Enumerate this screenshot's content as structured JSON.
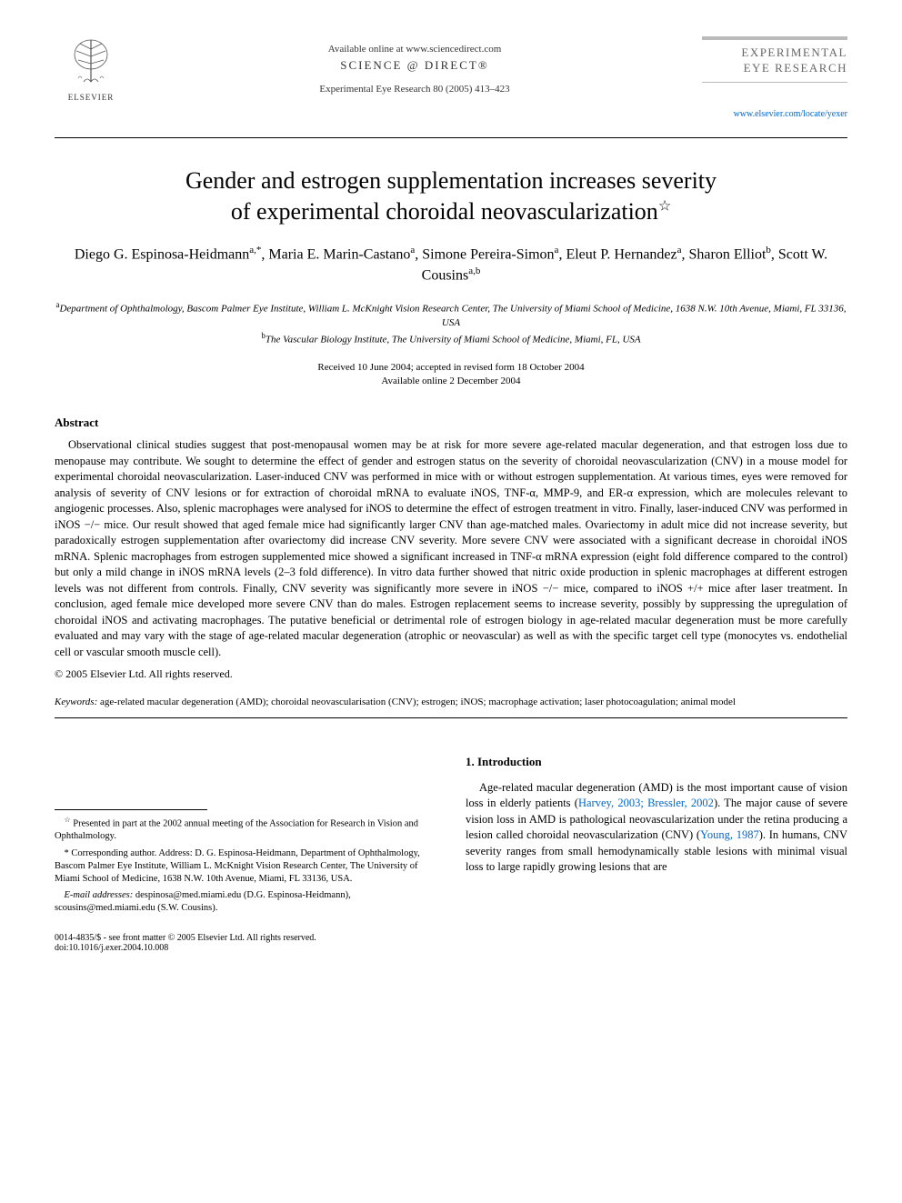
{
  "header": {
    "publisher_name": "ELSEVIER",
    "available_online": "Available online at www.sciencedirect.com",
    "science_direct": "SCIENCE @ DIRECT®",
    "journal_ref": "Experimental Eye Research 80 (2005) 413–423",
    "journal_logo_line1": "EXPERIMENTAL",
    "journal_logo_line2": "EYE RESEARCH",
    "journal_url": "www.elsevier.com/locate/yexer"
  },
  "article": {
    "title_line1": "Gender and estrogen supplementation increases severity",
    "title_line2": "of experimental choroidal neovascularization",
    "title_star": "☆",
    "authors_html": "Diego G. Espinosa-Heidmann<sup>a,*</sup>, Maria E. Marin-Castano<sup>a</sup>, Simone Pereira-Simon<sup>a</sup>, Eleut P. Hernandez<sup>a</sup>, Sharon Elliot<sup>b</sup>, Scott W. Cousins<sup>a,b</sup>",
    "affil_a": "Department of Ophthalmology, Bascom Palmer Eye Institute, William L. McKnight Vision Research Center, The University of Miami School of Medicine, 1638 N.W. 10th Avenue, Miami, FL 33136, USA",
    "affil_b": "The Vascular Biology Institute, The University of Miami School of Medicine, Miami, FL, USA",
    "received": "Received 10 June 2004; accepted in revised form 18 October 2004",
    "available": "Available online 2 December 2004"
  },
  "abstract": {
    "heading": "Abstract",
    "body": "Observational clinical studies suggest that post-menopausal women may be at risk for more severe age-related macular degeneration, and that estrogen loss due to menopause may contribute. We sought to determine the effect of gender and estrogen status on the severity of choroidal neovascularization (CNV) in a mouse model for experimental choroidal neovascularization. Laser-induced CNV was performed in mice with or without estrogen supplementation. At various times, eyes were removed for analysis of severity of CNV lesions or for extraction of choroidal mRNA to evaluate iNOS, TNF-α, MMP-9, and ER-α expression, which are molecules relevant to angiogenic processes. Also, splenic macrophages were analysed for iNOS to determine the effect of estrogen treatment in vitro. Finally, laser-induced CNV was performed in iNOS −/− mice. Our result showed that aged female mice had significantly larger CNV than age-matched males. Ovariectomy in adult mice did not increase severity, but paradoxically estrogen supplementation after ovariectomy did increase CNV severity. More severe CNV were associated with a significant decrease in choroidal iNOS mRNA. Splenic macrophages from estrogen supplemented mice showed a significant increased in TNF-α mRNA expression (eight fold difference compared to the control) but only a mild change in iNOS mRNA levels (2–3 fold difference). In vitro data further showed that nitric oxide production in splenic macrophages at different estrogen levels was not different from controls. Finally, CNV severity was significantly more severe in iNOS −/− mice, compared to iNOS +/+ mice after laser treatment. In conclusion, aged female mice developed more severe CNV than do males. Estrogen replacement seems to increase severity, possibly by suppressing the upregulation of choroidal iNOS and activating macrophages. The putative beneficial or detrimental role of estrogen biology in age-related macular degeneration must be more carefully evaluated and may vary with the stage of age-related macular degeneration (atrophic or neovascular) as well as with the specific target cell type (monocytes vs. endothelial cell or vascular smooth muscle cell).",
    "copyright": "© 2005 Elsevier Ltd. All rights reserved."
  },
  "keywords": {
    "label": "Keywords:",
    "text": " age-related macular degeneration (AMD); choroidal neovascularisation (CNV); estrogen; iNOS; macrophage activation; laser photocoagulation; animal model"
  },
  "footnotes": {
    "star": "Presented in part at the 2002 annual meeting of the Association for Research in Vision and Ophthalmology.",
    "corresponding": "Corresponding author. Address: D. G. Espinosa-Heidmann, Department of Ophthalmology, Bascom Palmer Eye Institute, William L. McKnight Vision Research Center, The University of Miami School of Medicine, 1638 N.W. 10th Avenue, Miami, FL 33136, USA.",
    "email_label": "E-mail addresses:",
    "email_text": " despinosa@med.miami.edu (D.G. Espinosa-Heidmann), scousins@med.miami.edu (S.W. Cousins)."
  },
  "intro": {
    "heading": "1. Introduction",
    "body_pre": "Age-related macular degeneration (AMD) is the most important cause of vision loss in elderly patients (",
    "cite1": "Harvey, 2003; Bressler, 2002",
    "body_mid": "). The major cause of severe vision loss in AMD is pathological neovascularization under the retina producing a lesion called choroidal neovascularization (CNV) (",
    "cite2": "Young, 1987",
    "body_post": "). In humans, CNV severity ranges from small hemodynamically stable lesions with minimal visual loss to large rapidly growing lesions that are"
  },
  "footer": {
    "left": "0014-4835/$ - see front matter © 2005 Elsevier Ltd. All rights reserved.",
    "doi": "doi:10.1016/j.exer.2004.10.008"
  },
  "colors": {
    "link": "#0066cc",
    "text": "#000000",
    "muted": "#666666"
  }
}
